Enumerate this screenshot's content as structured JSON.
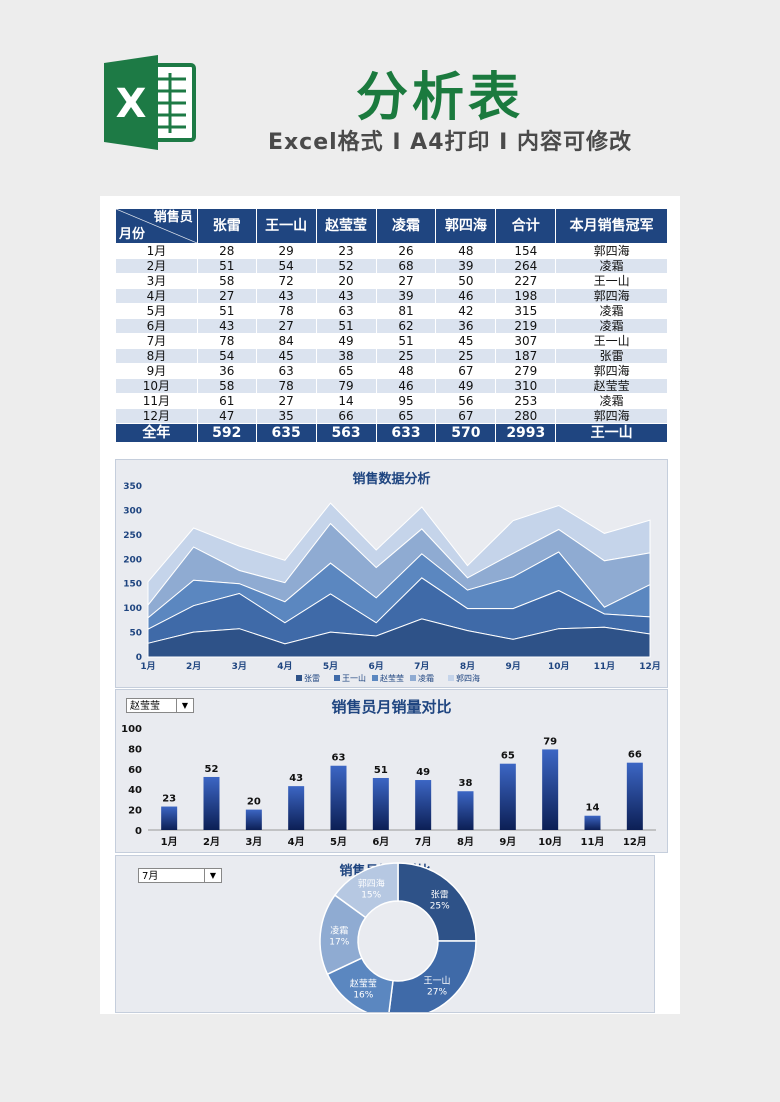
{
  "header": {
    "title": "分析表",
    "subtitle": "Excel格式 I A4打印 I 内容可修改",
    "logo_letter": "X"
  },
  "table": {
    "corner_top": "销售员",
    "corner_bottom": "月份",
    "columns": [
      "张雷",
      "王一山",
      "赵莹莹",
      "凌霜",
      "郭四海",
      "合计",
      "本月销售冠军"
    ],
    "rows": [
      {
        "month": "1月",
        "values": [
          "28",
          "29",
          "23",
          "26",
          "48",
          "154"
        ],
        "champion": "郭四海"
      },
      {
        "month": "2月",
        "values": [
          "51",
          "54",
          "52",
          "68",
          "39",
          "264"
        ],
        "champion": "凌霜"
      },
      {
        "month": "3月",
        "values": [
          "58",
          "72",
          "20",
          "27",
          "50",
          "227"
        ],
        "champion": "王一山"
      },
      {
        "month": "4月",
        "values": [
          "27",
          "43",
          "43",
          "39",
          "46",
          "198"
        ],
        "champion": "郭四海"
      },
      {
        "month": "5月",
        "values": [
          "51",
          "78",
          "63",
          "81",
          "42",
          "315"
        ],
        "champion": "凌霜"
      },
      {
        "month": "6月",
        "values": [
          "43",
          "27",
          "51",
          "62",
          "36",
          "219"
        ],
        "champion": "凌霜"
      },
      {
        "month": "7月",
        "values": [
          "78",
          "84",
          "49",
          "51",
          "45",
          "307"
        ],
        "champion": "王一山"
      },
      {
        "month": "8月",
        "values": [
          "54",
          "45",
          "38",
          "25",
          "25",
          "187"
        ],
        "champion": "张雷"
      },
      {
        "month": "9月",
        "values": [
          "36",
          "63",
          "65",
          "48",
          "67",
          "279"
        ],
        "champion": "郭四海"
      },
      {
        "month": "10月",
        "values": [
          "58",
          "78",
          "79",
          "46",
          "49",
          "310"
        ],
        "champion": "赵莹莹"
      },
      {
        "month": "11月",
        "values": [
          "61",
          "27",
          "14",
          "95",
          "56",
          "253"
        ],
        "champion": "凌霜"
      },
      {
        "month": "12月",
        "values": [
          "47",
          "35",
          "66",
          "65",
          "67",
          "280"
        ],
        "champion": "郭四海"
      }
    ],
    "total": {
      "label": "全年",
      "values": [
        "592",
        "635",
        "563",
        "633",
        "570",
        "2993"
      ],
      "champion": "王一山"
    }
  },
  "chart_data": [
    {
      "type": "area",
      "stacked": true,
      "title": "销售数据分析",
      "categories": [
        "1月",
        "2月",
        "3月",
        "4月",
        "5月",
        "6月",
        "7月",
        "8月",
        "9月",
        "10月",
        "11月",
        "12月"
      ],
      "series": [
        {
          "name": "张雷",
          "values": [
            28,
            51,
            58,
            27,
            51,
            43,
            78,
            54,
            36,
            58,
            61,
            47
          ],
          "color": "#2e5288"
        },
        {
          "name": "王一山",
          "values": [
            29,
            54,
            72,
            43,
            78,
            27,
            84,
            45,
            63,
            78,
            27,
            35
          ],
          "color": "#3f6aa8"
        },
        {
          "name": "赵莹莹",
          "values": [
            23,
            52,
            20,
            43,
            63,
            51,
            49,
            38,
            65,
            79,
            14,
            66
          ],
          "color": "#5b87c0"
        },
        {
          "name": "凌霜",
          "values": [
            26,
            68,
            27,
            39,
            81,
            62,
            51,
            25,
            48,
            46,
            95,
            65
          ],
          "color": "#8fabd2"
        },
        {
          "name": "郭四海",
          "values": [
            48,
            39,
            50,
            46,
            42,
            36,
            45,
            25,
            67,
            49,
            56,
            67
          ],
          "color": "#c5d4ea"
        }
      ],
      "ylim": [
        0,
        350
      ],
      "yticks": [
        0,
        50,
        100,
        150,
        200,
        250,
        300,
        350
      ],
      "legend": "bottom"
    },
    {
      "type": "bar",
      "title": "销售员月销量对比",
      "selected": "赵莹莹",
      "categories": [
        "1月",
        "2月",
        "3月",
        "4月",
        "5月",
        "6月",
        "7月",
        "8月",
        "9月",
        "10月",
        "11月",
        "12月"
      ],
      "values": [
        23,
        52,
        20,
        43,
        63,
        51,
        49,
        38,
        65,
        79,
        14,
        66
      ],
      "ylim": [
        0,
        100
      ],
      "yticks": [
        0,
        20,
        40,
        60,
        80,
        100
      ]
    },
    {
      "type": "pie",
      "donut": true,
      "title": "员销售对比",
      "title_full": "销售员销售对比",
      "selected": "7月",
      "slices": [
        {
          "name": "张雷",
          "value": 25,
          "label": "25%",
          "color": "#2e5288"
        },
        {
          "name": "王一山",
          "value": 27,
          "label": "27%",
          "color": "#3f6aa8"
        },
        {
          "name": "赵莹莹",
          "value": 16,
          "label": "16%",
          "color": "#5b87c0"
        },
        {
          "name": "凌霜",
          "value": 17,
          "label": "17%",
          "color": "#8fabd2"
        },
        {
          "name": "郭四海",
          "value": 15,
          "label": "15%",
          "color": "#b6c8e2"
        }
      ]
    }
  ]
}
